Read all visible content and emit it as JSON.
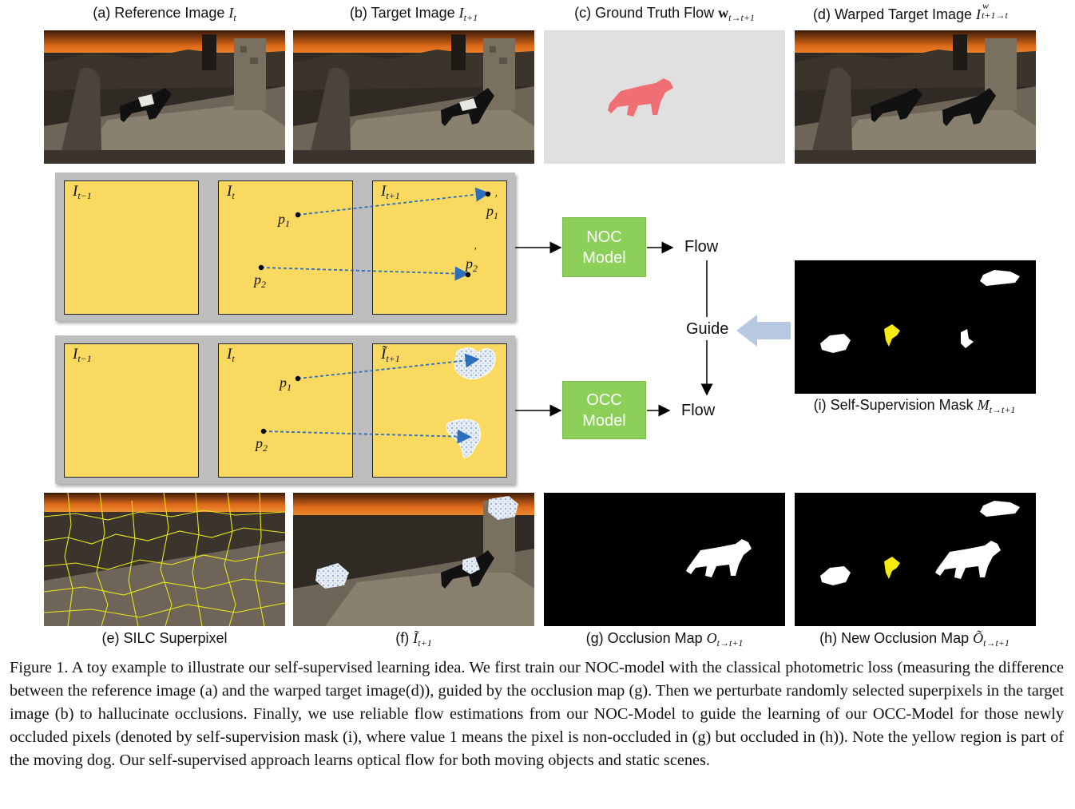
{
  "top_captions": {
    "a_text": "(a) Reference Image",
    "a_math": "I",
    "a_sub": "t",
    "b_text": "(b) Target Image",
    "b_math": "I",
    "b_sub": "t+1",
    "c_text": "(c) Ground Truth Flow",
    "c_math": "w",
    "c_sub": "t→t+1",
    "d_text": "(d) Warped Target Image",
    "d_math": "I",
    "d_sup": "w",
    "d_sub": "t+1→t"
  },
  "bottom_captions": {
    "e_text": "(e) SILC Superpixel",
    "f_text": "(f)",
    "f_math": "Ĩ",
    "f_sub": "t+1",
    "g_text": "(g) Occlusion Map",
    "g_math": "O",
    "g_sub": "t→t+1",
    "h_text": "(h) New Occlusion Map",
    "h_math": "Õ",
    "h_sub": "t→t+1"
  },
  "diagram": {
    "top_row": {
      "frame1": "I",
      "frame1_sub": "t−1",
      "frame2": "I",
      "frame2_sub": "t",
      "frame3": "I",
      "frame3_sub": "t+1",
      "p1": "p",
      "p1_sub": "1",
      "p2": "p",
      "p2_sub": "2",
      "p1prime": "p",
      "p1prime_sub": "1",
      "p2prime": "p",
      "p2prime_sub": "2",
      "prime": "′"
    },
    "bottom_row": {
      "frame1": "I",
      "frame1_sub": "t−1",
      "frame2": "I",
      "frame2_sub": "t",
      "frame3": "Ĩ",
      "frame3_sub": "t+1",
      "p1": "p",
      "p1_sub": "1",
      "p2": "p",
      "p2_sub": "2"
    },
    "noc_model": [
      "NOC",
      "Model"
    ],
    "occ_model": [
      "OCC",
      "Model"
    ],
    "flow_top": "Flow",
    "flow_bottom": "Flow",
    "guide": "Guide",
    "mask_caption_text": "(i) Self-Supervision Mask",
    "mask_math": "M",
    "mask_sub": "t→t+1"
  },
  "colors": {
    "frame_fill": "#fad961",
    "model_fill": "#8cd05a",
    "box_gray": "#bdbdbd",
    "arrow_blue": "#2e6fbd",
    "guide_arrow": "#b7c9e2",
    "flow_pink": "#ef6f75",
    "flow_bg": "#e0e0e0",
    "mask_yellow": "#f5ea12"
  },
  "figure_caption": "Figure 1. A toy example to illustrate our self-supervised learning idea. We first train our NOC-model with the classical photometric loss (measuring the difference between the reference image (a) and the warped target image(d)), guided by the occlusion map (g). Then we perturbate randomly selected superpixels in the target image (b) to hallucinate occlusions. Finally, we use reliable flow estimations from our NOC-Model to guide the learning of our OCC-Model for those newly occluded pixels (denoted by self-supervision mask (i), where value 1 means the pixel is non-occluded in (g) but occluded in (h)). Note the yellow region is part of the moving dog. Our self-supervised approach learns optical flow for both moving objects and static scenes."
}
